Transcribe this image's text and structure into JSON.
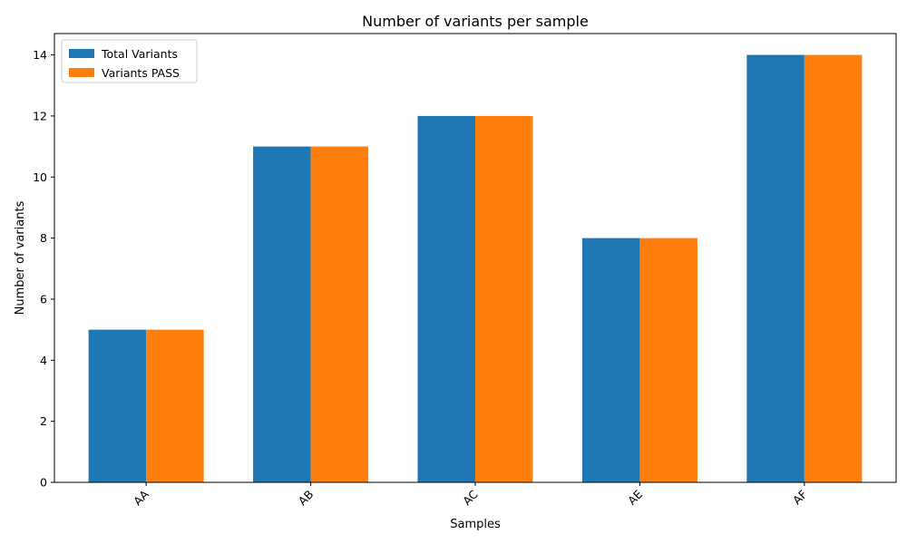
{
  "chart_data": {
    "type": "bar",
    "title": "Number of variants per sample",
    "xlabel": "Samples",
    "ylabel": "Number of variants",
    "categories": [
      "AA",
      "AB",
      "AC",
      "AE",
      "AF"
    ],
    "series": [
      {
        "name": "Total Variants",
        "values": [
          5,
          11,
          12,
          8,
          14
        ],
        "color": "#1f77b4"
      },
      {
        "name": "Variants PASS",
        "values": [
          5,
          11,
          12,
          8,
          14
        ],
        "color": "#ff7f0e"
      }
    ],
    "ylim": [
      0,
      14.7
    ],
    "yticks": [
      0,
      2,
      4,
      6,
      8,
      10,
      12,
      14
    ],
    "grid": false,
    "legend_position": "top-left",
    "xtick_rotation": "45"
  }
}
